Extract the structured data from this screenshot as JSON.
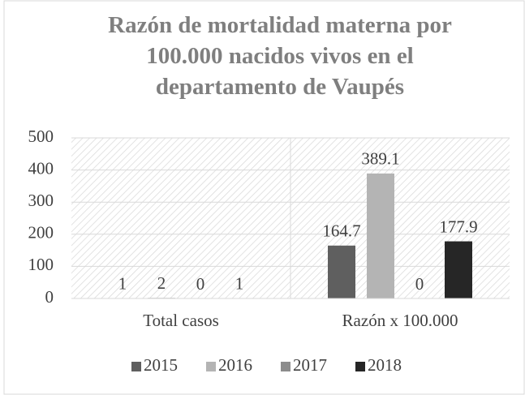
{
  "chart_data": {
    "type": "bar",
    "title": "Razón de mortalidad materna por 100.000 nacidos vivos en el departamento de Vaupés",
    "categories": [
      "Total casos",
      "Razón x 100.000"
    ],
    "series": [
      {
        "name": "2015",
        "color": "#5f5f5f",
        "values": [
          1,
          164.7
        ]
      },
      {
        "name": "2016",
        "color": "#b4b4b4",
        "values": [
          2,
          389.1
        ]
      },
      {
        "name": "2017",
        "color": "#8c8c8c",
        "values": [
          0,
          0
        ]
      },
      {
        "name": "2018",
        "color": "#262626",
        "values": [
          1,
          177.9
        ]
      }
    ],
    "ylim": [
      0,
      500
    ],
    "yticks": [
      0,
      100,
      200,
      300,
      400,
      500
    ],
    "grid": true,
    "legend": "bottom"
  }
}
